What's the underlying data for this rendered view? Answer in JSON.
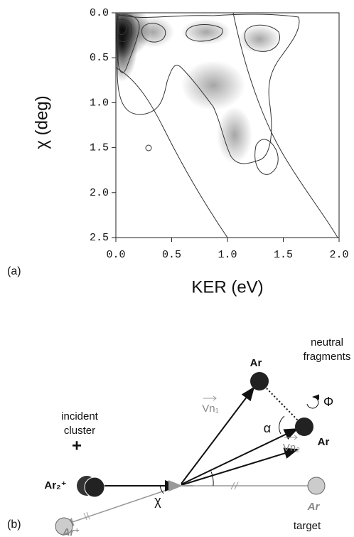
{
  "chart_data": {
    "type": "contour",
    "xlabel": "KER (eV)",
    "ylabel": "χ (deg)",
    "xlim": [
      0,
      2
    ],
    "ylim": [
      2.5,
      0
    ],
    "xticks": [
      {
        "value": 0,
        "label": "0.0"
      },
      {
        "value": 0.5,
        "label": "0.5"
      },
      {
        "value": 1,
        "label": "1.0"
      },
      {
        "value": 1.5,
        "label": "1.5"
      },
      {
        "value": 2,
        "label": "2.0"
      }
    ],
    "yticks": [
      {
        "value": 0,
        "label": "0.0"
      },
      {
        "value": 0.5,
        "label": "0.5"
      },
      {
        "value": 1,
        "label": "1.0"
      },
      {
        "value": 1.5,
        "label": "1.5"
      },
      {
        "value": 2,
        "label": "2.0"
      },
      {
        "value": 2.5,
        "label": "2.5"
      }
    ]
  },
  "panel_labels": [
    "(a)",
    "(b)"
  ],
  "diagram": {
    "neutral_fragments": [
      "neutral",
      "fragments"
    ],
    "ar_top": "Ar",
    "ar_right": "Ar",
    "phi": "Φ",
    "alpha": "α",
    "vn1": "Vn₁",
    "vn2": "Vn₂",
    "chi": "χ",
    "incident_cluster": [
      "incident",
      "cluster"
    ],
    "plus": "+",
    "ar2": "Ar₂⁺",
    "target_ar": "Ar",
    "target": "target",
    "ar_ion": "Ar⁺"
  }
}
